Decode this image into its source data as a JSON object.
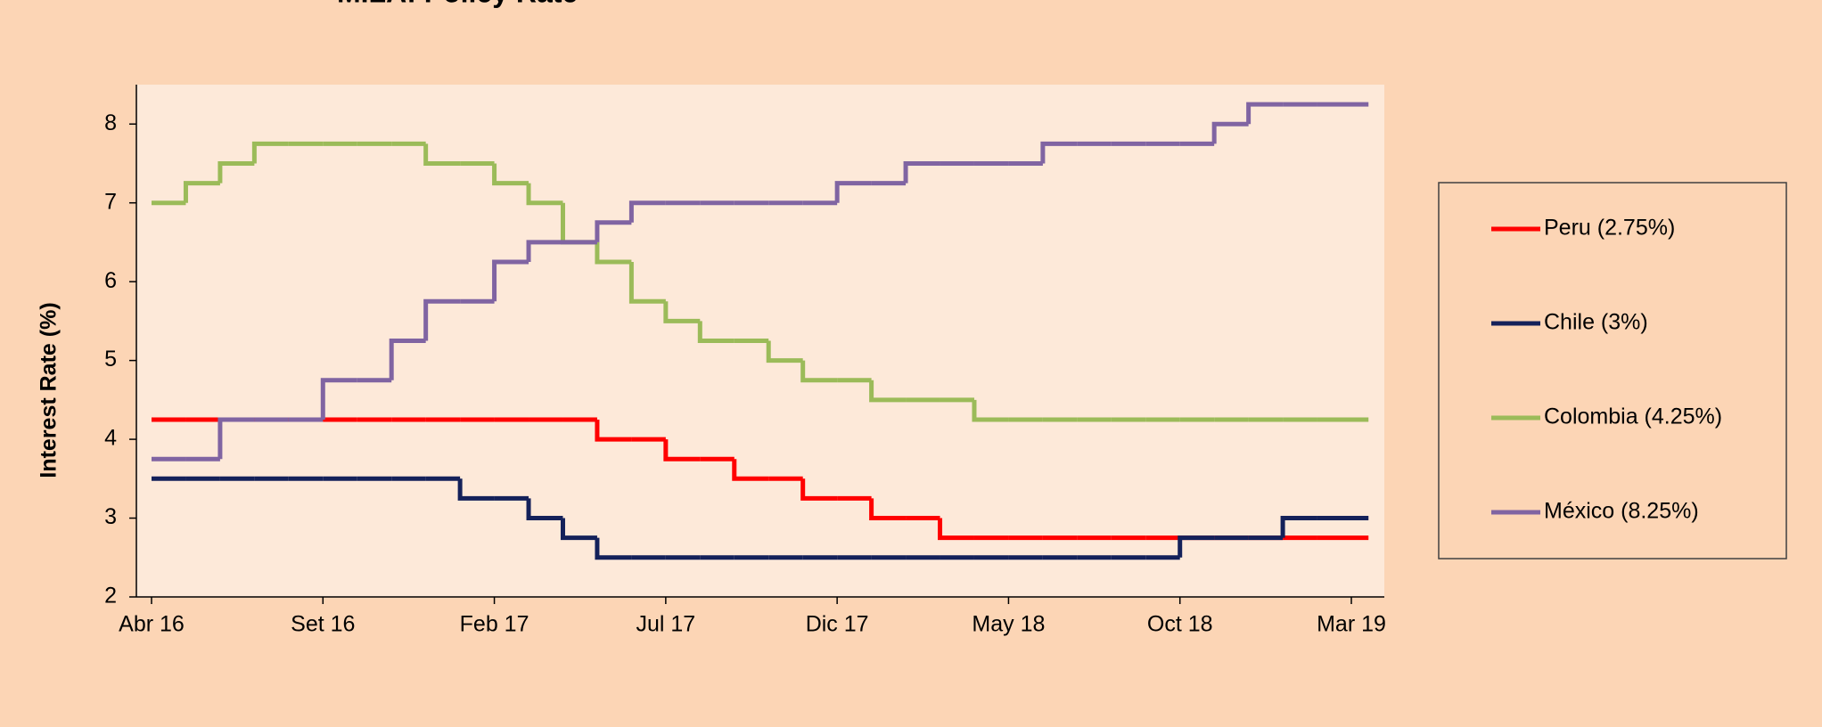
{
  "chart_data": {
    "type": "step-line",
    "title": "MILA: Policy Rate",
    "y_label": "Interest Rate (%)",
    "categories": [
      "Abr 16",
      null,
      null,
      null,
      null,
      "Set 16",
      null,
      null,
      null,
      null,
      "Feb 17",
      null,
      null,
      null,
      null,
      "Jul 17",
      null,
      null,
      null,
      null,
      "Dic 17",
      null,
      null,
      null,
      null,
      "May 18",
      null,
      null,
      null,
      null,
      "Oct 18",
      null,
      null,
      null,
      null,
      "Mar 19"
    ],
    "series": [
      {
        "name": "Peru (2.75%)",
        "color": "#ff0000",
        "values": [
          4.25,
          4.25,
          4.25,
          4.25,
          4.25,
          4.25,
          4.25,
          4.25,
          4.25,
          4.25,
          4.25,
          4.25,
          4.25,
          4.0,
          4.0,
          3.75,
          3.75,
          3.5,
          3.5,
          3.25,
          3.25,
          3.0,
          3.0,
          2.75,
          2.75,
          2.75,
          2.75,
          2.75,
          2.75,
          2.75,
          2.75,
          2.75,
          2.75,
          2.75,
          2.75,
          2.75
        ]
      },
      {
        "name": "Chile (3%)",
        "color": "#14215a",
        "values": [
          3.5,
          3.5,
          3.5,
          3.5,
          3.5,
          3.5,
          3.5,
          3.5,
          3.5,
          3.25,
          3.25,
          3.0,
          2.75,
          2.5,
          2.5,
          2.5,
          2.5,
          2.5,
          2.5,
          2.5,
          2.5,
          2.5,
          2.5,
          2.5,
          2.5,
          2.5,
          2.5,
          2.5,
          2.5,
          2.5,
          2.75,
          2.75,
          2.75,
          3.0,
          3.0,
          3.0
        ]
      },
      {
        "name": "Colombia (4.25%)",
        "color": "#9bbb59",
        "values": [
          7.0,
          7.25,
          7.5,
          7.75,
          7.75,
          7.75,
          7.75,
          7.75,
          7.5,
          7.5,
          7.25,
          7.0,
          6.5,
          6.25,
          5.75,
          5.5,
          5.25,
          5.25,
          5.0,
          4.75,
          4.75,
          4.5,
          4.5,
          4.5,
          4.25,
          4.25,
          4.25,
          4.25,
          4.25,
          4.25,
          4.25,
          4.25,
          4.25,
          4.25,
          4.25,
          4.25
        ]
      },
      {
        "name": "México (8.25%)",
        "color": "#8064a2",
        "values": [
          3.75,
          3.75,
          4.25,
          4.25,
          4.25,
          4.75,
          4.75,
          5.25,
          5.75,
          5.75,
          6.25,
          6.5,
          6.5,
          6.75,
          7.0,
          7.0,
          7.0,
          7.0,
          7.0,
          7.0,
          7.25,
          7.25,
          7.5,
          7.5,
          7.5,
          7.5,
          7.75,
          7.75,
          7.75,
          7.75,
          7.75,
          8.0,
          8.25,
          8.25,
          8.25,
          8.25
        ]
      }
    ],
    "ylim": [
      2,
      8.5
    ],
    "yticks": [
      2,
      3,
      4,
      5,
      6,
      7,
      8
    ],
    "plot_background": "#fde9d9",
    "legend": "right"
  }
}
